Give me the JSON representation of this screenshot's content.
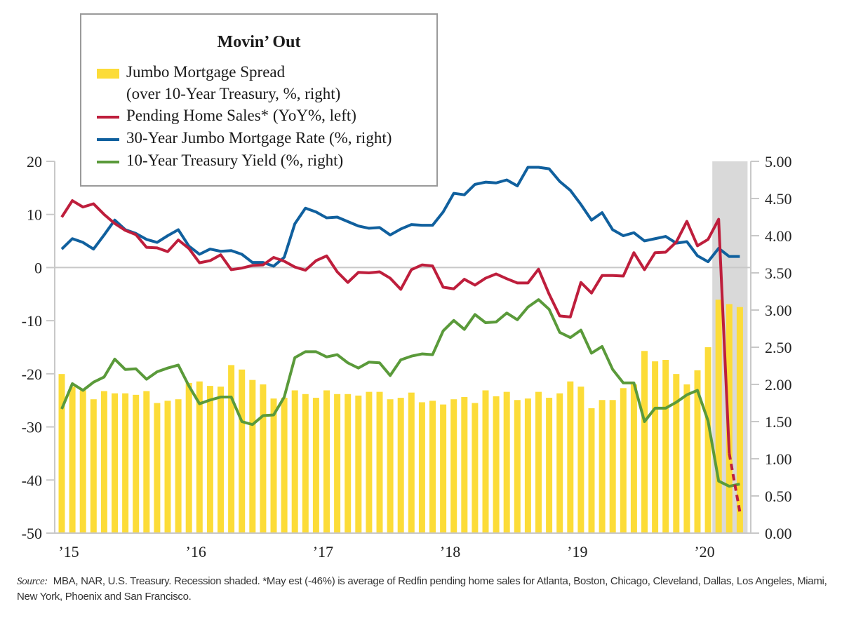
{
  "chart_data": {
    "type": "bar+line",
    "title": "Movin’ Out",
    "x": [
      "Jan-15",
      "Feb-15",
      "Mar-15",
      "Apr-15",
      "May-15",
      "Jun-15",
      "Jul-15",
      "Aug-15",
      "Sep-15",
      "Oct-15",
      "Nov-15",
      "Dec-15",
      "Jan-16",
      "Feb-16",
      "Mar-16",
      "Apr-16",
      "May-16",
      "Jun-16",
      "Jul-16",
      "Aug-16",
      "Sep-16",
      "Oct-16",
      "Nov-16",
      "Dec-16",
      "Jan-17",
      "Feb-17",
      "Mar-17",
      "Apr-17",
      "May-17",
      "Jun-17",
      "Jul-17",
      "Aug-17",
      "Sep-17",
      "Oct-17",
      "Nov-17",
      "Dec-17",
      "Jan-18",
      "Feb-18",
      "Mar-18",
      "Apr-18",
      "May-18",
      "Jun-18",
      "Jul-18",
      "Aug-18",
      "Sep-18",
      "Oct-18",
      "Nov-18",
      "Dec-18",
      "Jan-19",
      "Feb-19",
      "Mar-19",
      "Apr-19",
      "May-19",
      "Jun-19",
      "Jul-19",
      "Aug-19",
      "Sep-19",
      "Oct-19",
      "Nov-19",
      "Dec-19",
      "Jan-20",
      "Feb-20",
      "Mar-20",
      "Apr-20",
      "May-20"
    ],
    "x_tick_labels": [
      "’15",
      "’16",
      "’17",
      "’18",
      "’19",
      "’20"
    ],
    "left_axis": {
      "label": "YoY%",
      "ylim": [
        -50,
        20
      ],
      "ticks": [
        "20",
        "10",
        "0",
        "-10",
        "-20",
        "-30",
        "-40",
        "-50"
      ]
    },
    "right_axis": {
      "label": "%",
      "ylim": [
        0,
        5
      ],
      "ticks": [
        "5.00",
        "4.50",
        "4.00",
        "3.50",
        "3.00",
        "2.50",
        "2.00",
        "1.50",
        "1.00",
        "0.50",
        "0.00"
      ]
    },
    "recession_shaded": {
      "start": "Mar-20",
      "end": "May-20",
      "color": "#d9d9d9"
    },
    "series": [
      {
        "name": "Jumbo Mortgage Spread",
        "name_line2": "(over 10-Year Treasury, %, right)",
        "kind": "bar",
        "axis": "right",
        "color": "#fcdc38",
        "values": [
          2.14,
          1.97,
          1.92,
          1.8,
          1.91,
          1.88,
          1.88,
          1.86,
          1.91,
          1.75,
          1.78,
          1.8,
          2.02,
          2.04,
          1.98,
          1.97,
          2.26,
          2.2,
          2.06,
          2.0,
          1.81,
          1.82,
          1.92,
          1.87,
          1.82,
          1.92,
          1.87,
          1.87,
          1.85,
          1.9,
          1.9,
          1.8,
          1.82,
          1.89,
          1.76,
          1.78,
          1.73,
          1.8,
          1.83,
          1.75,
          1.92,
          1.84,
          1.9,
          1.79,
          1.81,
          1.9,
          1.82,
          1.88,
          2.04,
          1.97,
          1.68,
          1.79,
          1.79,
          1.95,
          2.0,
          2.45,
          2.31,
          2.33,
          2.14,
          2.0,
          2.19,
          2.5,
          3.14,
          3.08,
          3.04
        ]
      },
      {
        "name": "Pending Home Sales* (YoY%, left)",
        "kind": "line",
        "axis": "left",
        "color": "#be1e3c",
        "dashed_last_segment": true,
        "values": [
          9.5,
          12.6,
          11.4,
          12.0,
          10.0,
          8.3,
          7.0,
          6.2,
          3.8,
          3.7,
          3.0,
          5.2,
          3.6,
          0.9,
          1.3,
          2.4,
          -0.4,
          -0.1,
          0.4,
          0.5,
          1.9,
          1.2,
          0.1,
          -0.5,
          1.3,
          2.2,
          -0.8,
          -2.8,
          -0.9,
          -1.0,
          -0.8,
          -2.0,
          -4.1,
          -0.4,
          0.5,
          0.3,
          -3.7,
          -4.0,
          -2.2,
          -3.3,
          -2.0,
          -1.2,
          -2.1,
          -2.9,
          -2.9,
          -0.3,
          -5.0,
          -9.1,
          -9.3,
          -2.8,
          -4.8,
          -1.5,
          -1.5,
          -1.6,
          2.8,
          -0.4,
          2.8,
          2.9,
          4.8,
          8.7,
          4.1,
          5.3,
          9.1,
          -35.0,
          -46.0
        ]
      },
      {
        "name": "30-Year Jumbo Mortgage Rate (%, right)",
        "kind": "line",
        "axis": "right",
        "color": "#10609e",
        "values": [
          3.82,
          3.96,
          3.91,
          3.82,
          4.01,
          4.21,
          4.08,
          4.03,
          3.95,
          3.91,
          4.0,
          4.08,
          3.86,
          3.75,
          3.82,
          3.79,
          3.8,
          3.75,
          3.64,
          3.64,
          3.59,
          3.71,
          4.16,
          4.37,
          4.32,
          4.24,
          4.25,
          4.19,
          4.13,
          4.1,
          4.11,
          4.01,
          4.09,
          4.15,
          4.14,
          4.14,
          4.32,
          4.57,
          4.55,
          4.69,
          4.72,
          4.71,
          4.75,
          4.67,
          4.92,
          4.92,
          4.9,
          4.73,
          4.61,
          4.42,
          4.21,
          4.31,
          4.08,
          4.0,
          4.04,
          3.93,
          3.96,
          3.99,
          3.9,
          3.92,
          3.73,
          3.65,
          3.83,
          3.72,
          3.72
        ]
      },
      {
        "name": "10-Year Treasury Yield (%, right)",
        "kind": "line",
        "axis": "right",
        "color": "#5a9a3a",
        "values": [
          1.67,
          2.01,
          1.92,
          2.03,
          2.1,
          2.34,
          2.2,
          2.21,
          2.07,
          2.17,
          2.22,
          2.26,
          1.98,
          1.74,
          1.79,
          1.83,
          1.83,
          1.5,
          1.46,
          1.58,
          1.59,
          1.83,
          2.36,
          2.44,
          2.44,
          2.37,
          2.4,
          2.29,
          2.22,
          2.3,
          2.29,
          2.12,
          2.33,
          2.38,
          2.41,
          2.4,
          2.72,
          2.86,
          2.74,
          2.94,
          2.83,
          2.84,
          2.96,
          2.87,
          3.04,
          3.14,
          3.01,
          2.7,
          2.63,
          2.73,
          2.42,
          2.51,
          2.2,
          2.02,
          2.02,
          1.5,
          1.68,
          1.68,
          1.76,
          1.86,
          1.92,
          1.51,
          0.7,
          0.63,
          0.66
        ]
      }
    ],
    "legend": "top-left",
    "grid": false
  },
  "source": {
    "label": "Source:",
    "text": "MBA, NAR, U.S. Treasury. Recession shaded. *May est (-46%) is average of Redfin pending home sales for Atlanta, Boston, Chicago, Cleveland, Dallas, Los Angeles, Miami, New York, Phoenix and San Francisco."
  }
}
